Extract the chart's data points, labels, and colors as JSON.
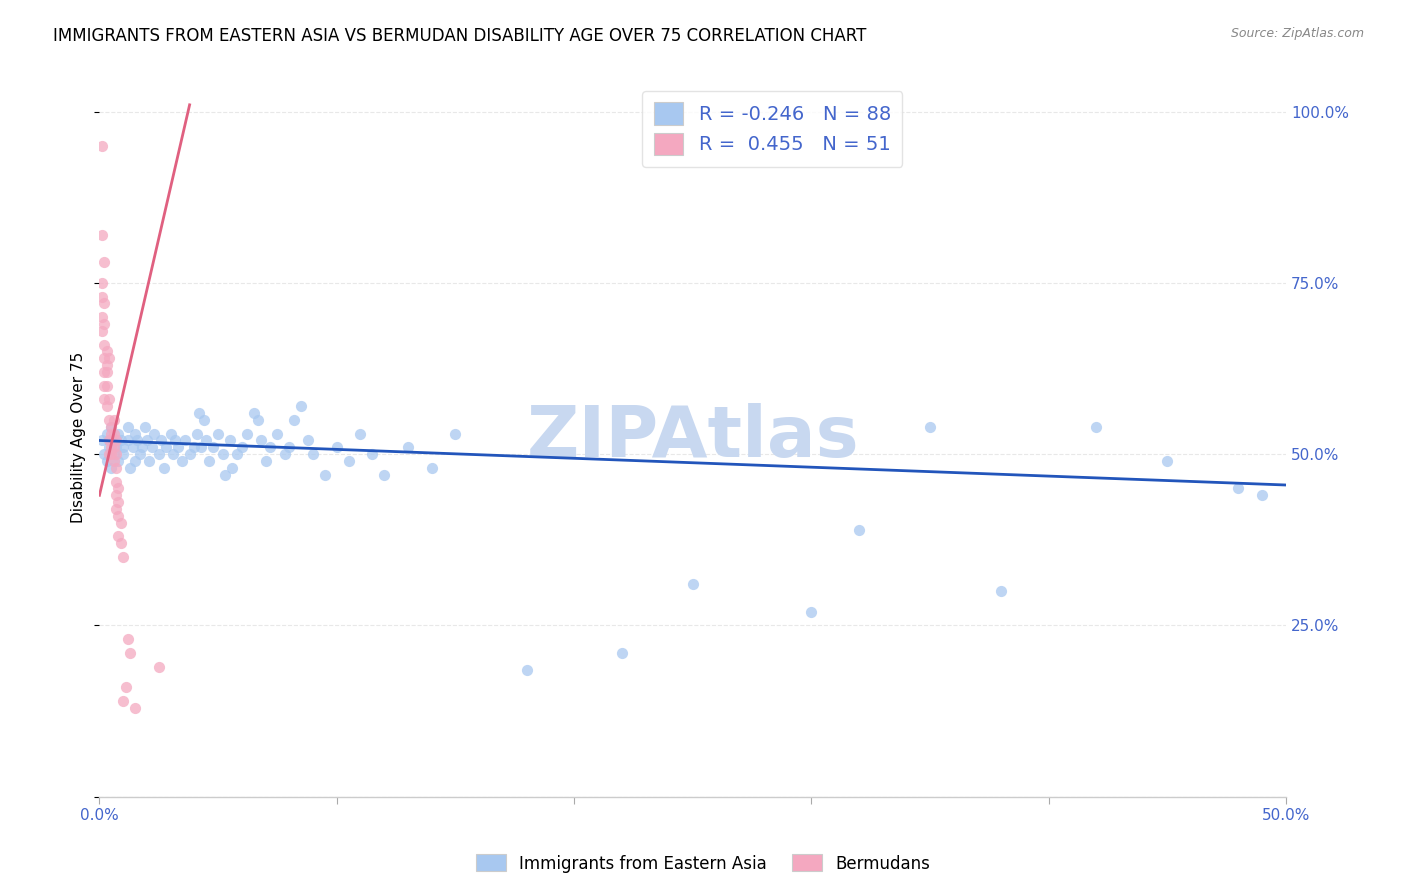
{
  "title": "IMMIGRANTS FROM EASTERN ASIA VS BERMUDAN DISABILITY AGE OVER 75 CORRELATION CHART",
  "source": "Source: ZipAtlas.com",
  "ylabel": "Disability Age Over 75",
  "xlim": [
    0.0,
    0.5
  ],
  "ylim": [
    0.0,
    1.05
  ],
  "ytick_labels": [
    "",
    "25.0%",
    "50.0%",
    "75.0%",
    "100.0%"
  ],
  "ytick_values": [
    0.0,
    0.25,
    0.5,
    0.75,
    1.0
  ],
  "xtick_labels": [
    "0.0%",
    "",
    "",
    "",
    "",
    "50.0%"
  ],
  "xtick_values": [
    0.0,
    0.1,
    0.2,
    0.3,
    0.4,
    0.5
  ],
  "legend_R_blue": "-0.246",
  "legend_N_blue": "88",
  "legend_R_pink": "0.455",
  "legend_N_pink": "51",
  "watermark": "ZIPAtlas",
  "blue_color": "#a8c8f0",
  "pink_color": "#f4a8c0",
  "blue_line_color": "#2255bb",
  "pink_line_color": "#e06080",
  "blue_scatter": [
    [
      0.001,
      0.52
    ],
    [
      0.002,
      0.5
    ],
    [
      0.003,
      0.53
    ],
    [
      0.003,
      0.49
    ],
    [
      0.004,
      0.51
    ],
    [
      0.005,
      0.54
    ],
    [
      0.005,
      0.48
    ],
    [
      0.006,
      0.52
    ],
    [
      0.006,
      0.5
    ],
    [
      0.007,
      0.51
    ],
    [
      0.008,
      0.53
    ],
    [
      0.008,
      0.49
    ],
    [
      0.009,
      0.52
    ],
    [
      0.01,
      0.51
    ],
    [
      0.01,
      0.5
    ],
    [
      0.012,
      0.52
    ],
    [
      0.012,
      0.54
    ],
    [
      0.013,
      0.48
    ],
    [
      0.014,
      0.51
    ],
    [
      0.015,
      0.53
    ],
    [
      0.015,
      0.49
    ],
    [
      0.016,
      0.52
    ],
    [
      0.017,
      0.5
    ],
    [
      0.018,
      0.51
    ],
    [
      0.019,
      0.54
    ],
    [
      0.02,
      0.52
    ],
    [
      0.021,
      0.49
    ],
    [
      0.022,
      0.51
    ],
    [
      0.023,
      0.53
    ],
    [
      0.025,
      0.5
    ],
    [
      0.026,
      0.52
    ],
    [
      0.027,
      0.48
    ],
    [
      0.028,
      0.51
    ],
    [
      0.03,
      0.53
    ],
    [
      0.031,
      0.5
    ],
    [
      0.032,
      0.52
    ],
    [
      0.033,
      0.51
    ],
    [
      0.035,
      0.49
    ],
    [
      0.036,
      0.52
    ],
    [
      0.038,
      0.5
    ],
    [
      0.04,
      0.51
    ],
    [
      0.041,
      0.53
    ],
    [
      0.042,
      0.56
    ],
    [
      0.043,
      0.51
    ],
    [
      0.044,
      0.55
    ],
    [
      0.045,
      0.52
    ],
    [
      0.046,
      0.49
    ],
    [
      0.048,
      0.51
    ],
    [
      0.05,
      0.53
    ],
    [
      0.052,
      0.5
    ],
    [
      0.053,
      0.47
    ],
    [
      0.055,
      0.52
    ],
    [
      0.056,
      0.48
    ],
    [
      0.058,
      0.5
    ],
    [
      0.06,
      0.51
    ],
    [
      0.062,
      0.53
    ],
    [
      0.065,
      0.56
    ],
    [
      0.067,
      0.55
    ],
    [
      0.068,
      0.52
    ],
    [
      0.07,
      0.49
    ],
    [
      0.072,
      0.51
    ],
    [
      0.075,
      0.53
    ],
    [
      0.078,
      0.5
    ],
    [
      0.08,
      0.51
    ],
    [
      0.082,
      0.55
    ],
    [
      0.085,
      0.57
    ],
    [
      0.088,
      0.52
    ],
    [
      0.09,
      0.5
    ],
    [
      0.095,
      0.47
    ],
    [
      0.1,
      0.51
    ],
    [
      0.105,
      0.49
    ],
    [
      0.11,
      0.53
    ],
    [
      0.115,
      0.5
    ],
    [
      0.12,
      0.47
    ],
    [
      0.13,
      0.51
    ],
    [
      0.14,
      0.48
    ],
    [
      0.15,
      0.53
    ],
    [
      0.18,
      0.185
    ],
    [
      0.22,
      0.21
    ],
    [
      0.25,
      0.31
    ],
    [
      0.3,
      0.27
    ],
    [
      0.32,
      0.39
    ],
    [
      0.35,
      0.54
    ],
    [
      0.38,
      0.3
    ],
    [
      0.42,
      0.54
    ],
    [
      0.45,
      0.49
    ],
    [
      0.48,
      0.45
    ],
    [
      0.49,
      0.44
    ]
  ],
  "pink_scatter": [
    [
      0.001,
      0.95
    ],
    [
      0.001,
      0.82
    ],
    [
      0.001,
      0.75
    ],
    [
      0.001,
      0.73
    ],
    [
      0.001,
      0.7
    ],
    [
      0.001,
      0.68
    ],
    [
      0.002,
      0.78
    ],
    [
      0.002,
      0.72
    ],
    [
      0.002,
      0.69
    ],
    [
      0.002,
      0.66
    ],
    [
      0.002,
      0.64
    ],
    [
      0.002,
      0.62
    ],
    [
      0.002,
      0.6
    ],
    [
      0.002,
      0.58
    ],
    [
      0.003,
      0.65
    ],
    [
      0.003,
      0.63
    ],
    [
      0.003,
      0.62
    ],
    [
      0.003,
      0.6
    ],
    [
      0.003,
      0.57
    ],
    [
      0.004,
      0.64
    ],
    [
      0.004,
      0.58
    ],
    [
      0.004,
      0.55
    ],
    [
      0.004,
      0.52
    ],
    [
      0.004,
      0.5
    ],
    [
      0.005,
      0.54
    ],
    [
      0.005,
      0.53
    ],
    [
      0.005,
      0.51
    ],
    [
      0.005,
      0.5
    ],
    [
      0.006,
      0.55
    ],
    [
      0.006,
      0.53
    ],
    [
      0.006,
      0.51
    ],
    [
      0.006,
      0.49
    ],
    [
      0.007,
      0.52
    ],
    [
      0.007,
      0.5
    ],
    [
      0.007,
      0.48
    ],
    [
      0.007,
      0.46
    ],
    [
      0.007,
      0.44
    ],
    [
      0.007,
      0.42
    ],
    [
      0.008,
      0.45
    ],
    [
      0.008,
      0.43
    ],
    [
      0.008,
      0.41
    ],
    [
      0.008,
      0.38
    ],
    [
      0.009,
      0.4
    ],
    [
      0.009,
      0.37
    ],
    [
      0.01,
      0.35
    ],
    [
      0.01,
      0.14
    ],
    [
      0.011,
      0.16
    ],
    [
      0.012,
      0.23
    ],
    [
      0.013,
      0.21
    ],
    [
      0.015,
      0.13
    ],
    [
      0.025,
      0.19
    ]
  ],
  "blue_line_x": [
    0.0,
    0.5
  ],
  "blue_line_y": [
    0.52,
    0.455
  ],
  "pink_line_x": [
    0.0,
    0.038
  ],
  "pink_line_y": [
    0.44,
    1.01
  ],
  "grid_color": "#e8e8e8",
  "bg_color": "#ffffff",
  "title_fontsize": 12,
  "label_fontsize": 11,
  "tick_fontsize": 11,
  "axis_label_color": "#4466cc",
  "watermark_color": "#c8d8f0",
  "watermark_fontsize": 52
}
